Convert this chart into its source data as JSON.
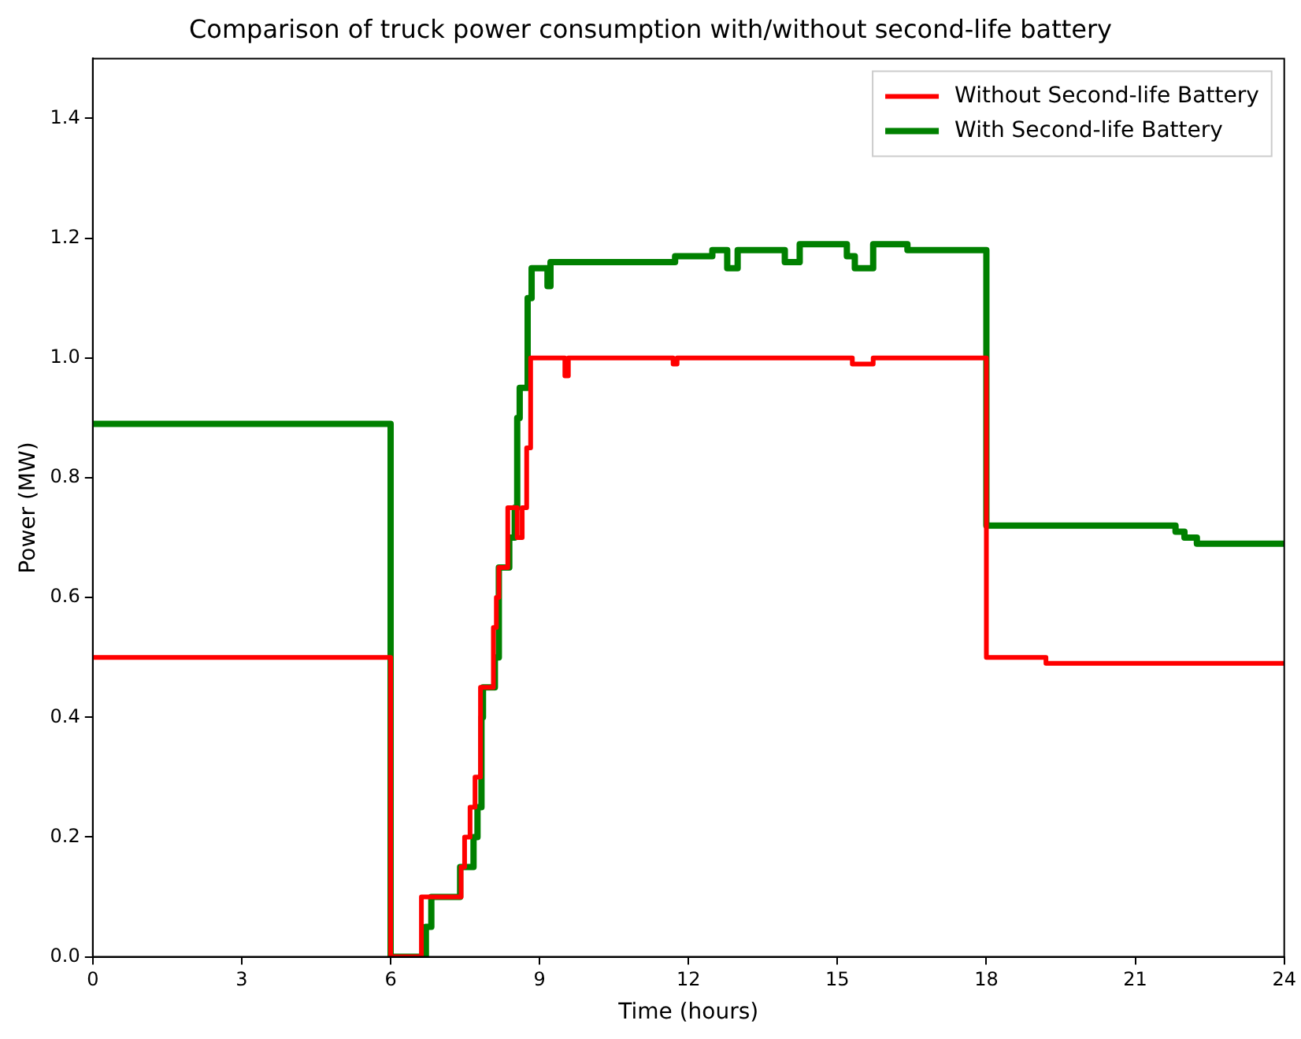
{
  "chart_data": {
    "type": "step",
    "title": "Comparison of truck power consumption with/without second-life battery",
    "xlabel": "Time (hours)",
    "ylabel": "Power (MW)",
    "xlim": [
      0,
      24
    ],
    "xticks": [
      0,
      3,
      6,
      9,
      12,
      15,
      18,
      21,
      24
    ],
    "ylim": [
      0,
      1.5
    ],
    "yticks": [
      {
        "value": 0,
        "label": "0.0"
      },
      {
        "value": 0.2,
        "label": "0.2"
      },
      {
        "value": 0.4,
        "label": "0.4"
      },
      {
        "value": 0.6,
        "label": "0.6"
      },
      {
        "value": 0.8,
        "label": "0.8"
      },
      {
        "value": 1,
        "label": "1.0"
      },
      {
        "value": 1.2,
        "label": "1.2"
      },
      {
        "value": 1.4,
        "label": "1.4"
      }
    ],
    "grid": false,
    "legend": "top right",
    "marker": "none",
    "line_style": "solid",
    "series": [
      {
        "name": "Without Second-life Battery",
        "color": "#ff0000",
        "x": [
          0,
          6,
          6.62,
          7.42,
          7.49,
          7.6,
          7.7,
          7.81,
          8.07,
          8.13,
          8.18,
          8.36,
          8.55,
          8.65,
          8.74,
          8.82,
          9.51,
          9.58,
          11.69,
          11.77,
          15.3,
          15.72,
          18,
          19.2,
          24
        ],
        "values": [
          0.5,
          0,
          0.1,
          0.15,
          0.2,
          0.25,
          0.3,
          0.45,
          0.55,
          0.6,
          0.65,
          0.75,
          0.7,
          0.75,
          0.85,
          1.0,
          0.97,
          1.0,
          0.99,
          1.0,
          0.99,
          1.0,
          0.5,
          0.49,
          0.49
        ]
      },
      {
        "name": "With Second-life Battery",
        "color": "#008000",
        "x": [
          0,
          6,
          6.71,
          6.82,
          7.4,
          7.67,
          7.75,
          7.83,
          7.86,
          8.1,
          8.18,
          8.39,
          8.5,
          8.55,
          8.6,
          8.76,
          8.84,
          9.16,
          9.22,
          11.73,
          11.79,
          12.48,
          12.78,
          12.99,
          13.76,
          13.94,
          14.24,
          15.19,
          15.35,
          15.72,
          16.41,
          18,
          21.81,
          21.99,
          22.24,
          24
        ],
        "values": [
          0.89,
          0,
          0.05,
          0.1,
          0.15,
          0.2,
          0.25,
          0.4,
          0.45,
          0.5,
          0.65,
          0.7,
          0.75,
          0.9,
          0.95,
          1.1,
          1.15,
          1.12,
          1.16,
          1.17,
          1.17,
          1.18,
          1.15,
          1.18,
          1.18,
          1.16,
          1.19,
          1.17,
          1.15,
          1.19,
          1.18,
          0.72,
          0.71,
          0.7,
          0.69,
          0.69
        ]
      }
    ]
  }
}
